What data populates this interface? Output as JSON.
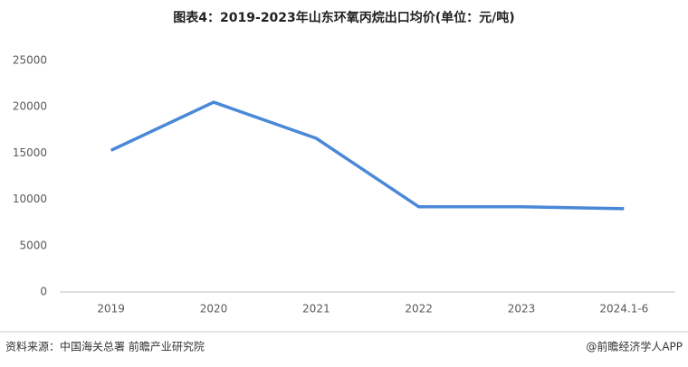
{
  "chart_data": {
    "type": "line",
    "title": "图表4：2019-2023年山东环氧丙烷出口均价(单位：元/吨)",
    "categories": [
      "2019",
      "2020",
      "2021",
      "2022",
      "2023",
      "2024.1-6"
    ],
    "series": [
      {
        "name": "出口均价",
        "color": "#4a88d8",
        "values": [
          15300,
          20500,
          16600,
          9200,
          9200,
          9000
        ]
      }
    ],
    "ylim": [
      0,
      25000
    ],
    "yticks": [
      0,
      5000,
      10000,
      15000,
      20000,
      25000
    ],
    "grid": false,
    "source": "资料来源：中国海关总署 前瞻产业研究院",
    "credit": "@前瞻经济学人APP"
  }
}
